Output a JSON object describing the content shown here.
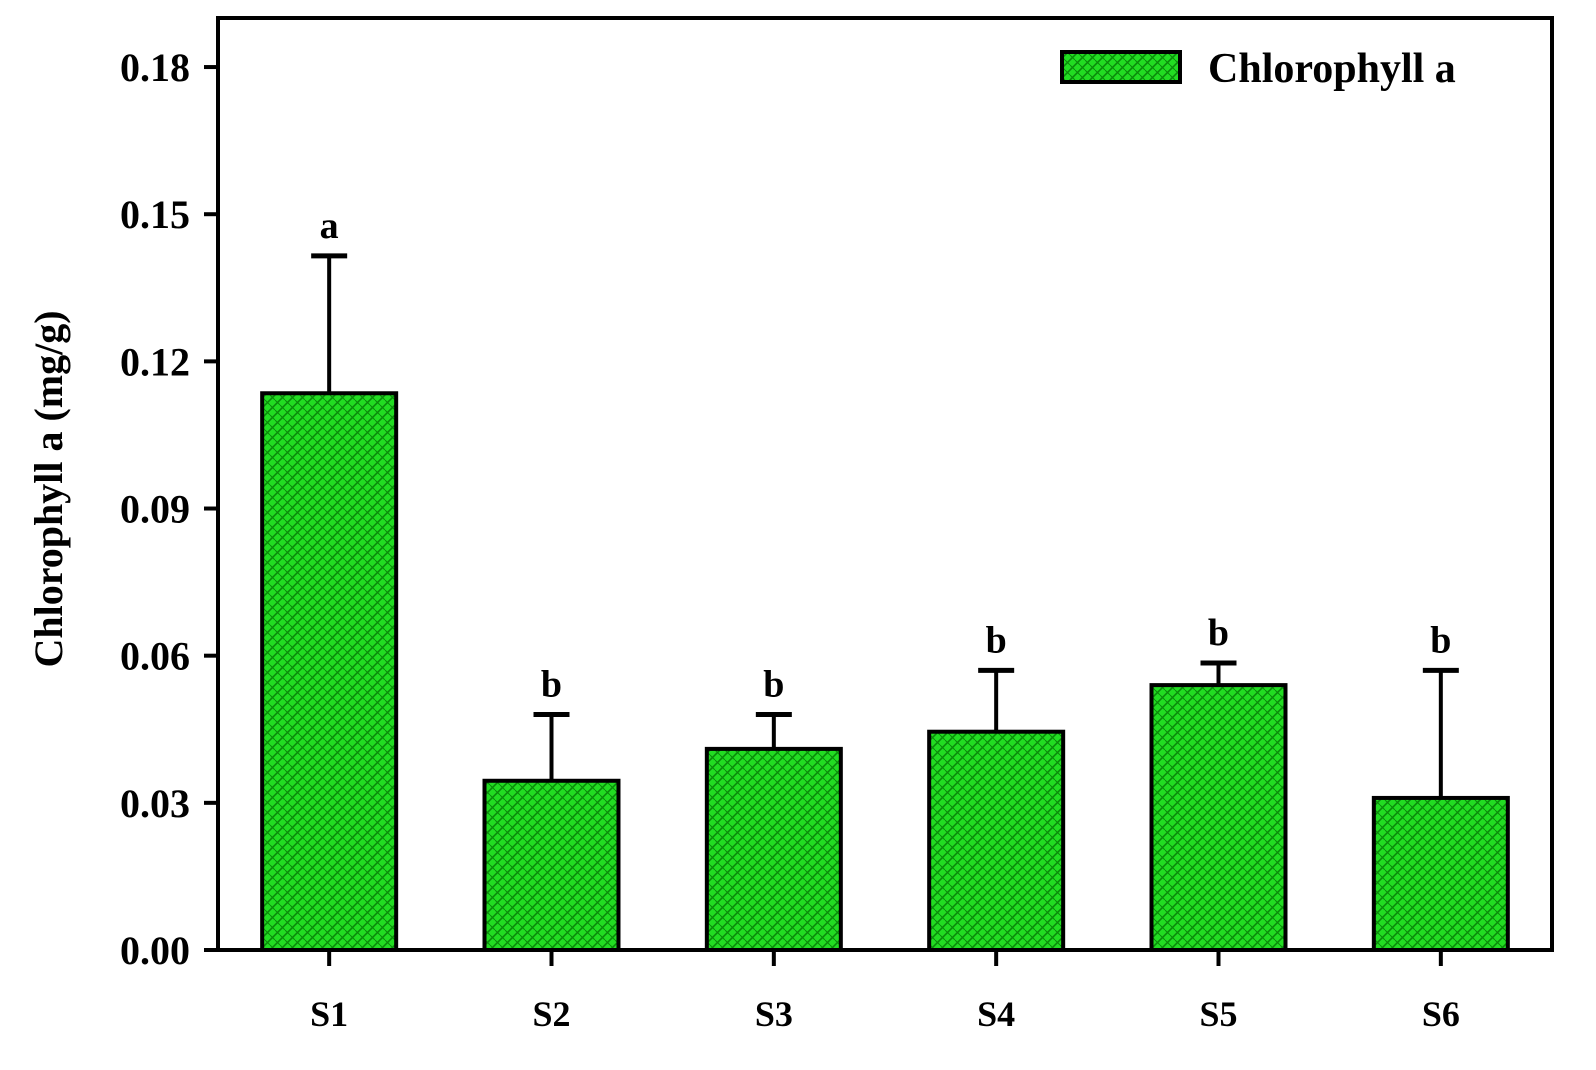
{
  "chart_data": {
    "type": "bar",
    "categories": [
      "S1",
      "S2",
      "S3",
      "S4",
      "S5",
      "S6"
    ],
    "series": [
      {
        "name": "Chlorophyll a",
        "values": [
          0.1135,
          0.0345,
          0.041,
          0.0445,
          0.054,
          0.031
        ],
        "errors": [
          0.028,
          0.0135,
          0.007,
          0.0125,
          0.0045,
          0.026
        ],
        "significance": [
          "a",
          "b",
          "b",
          "b",
          "b",
          "b"
        ]
      }
    ],
    "ylabel": "Chlorophyll a (mg/g)",
    "xlabel": "",
    "ylim": [
      0,
      0.19
    ],
    "yticks": [
      "0.00",
      "0.03",
      "0.06",
      "0.09",
      "0.12",
      "0.15",
      "0.18"
    ],
    "ytick_values": [
      0,
      0.03,
      0.06,
      0.09,
      0.12,
      0.15,
      0.18
    ],
    "legend_position": "top-right",
    "grid": false,
    "bar_color": "#22dd22",
    "pattern_color": "#0a7a0a"
  }
}
